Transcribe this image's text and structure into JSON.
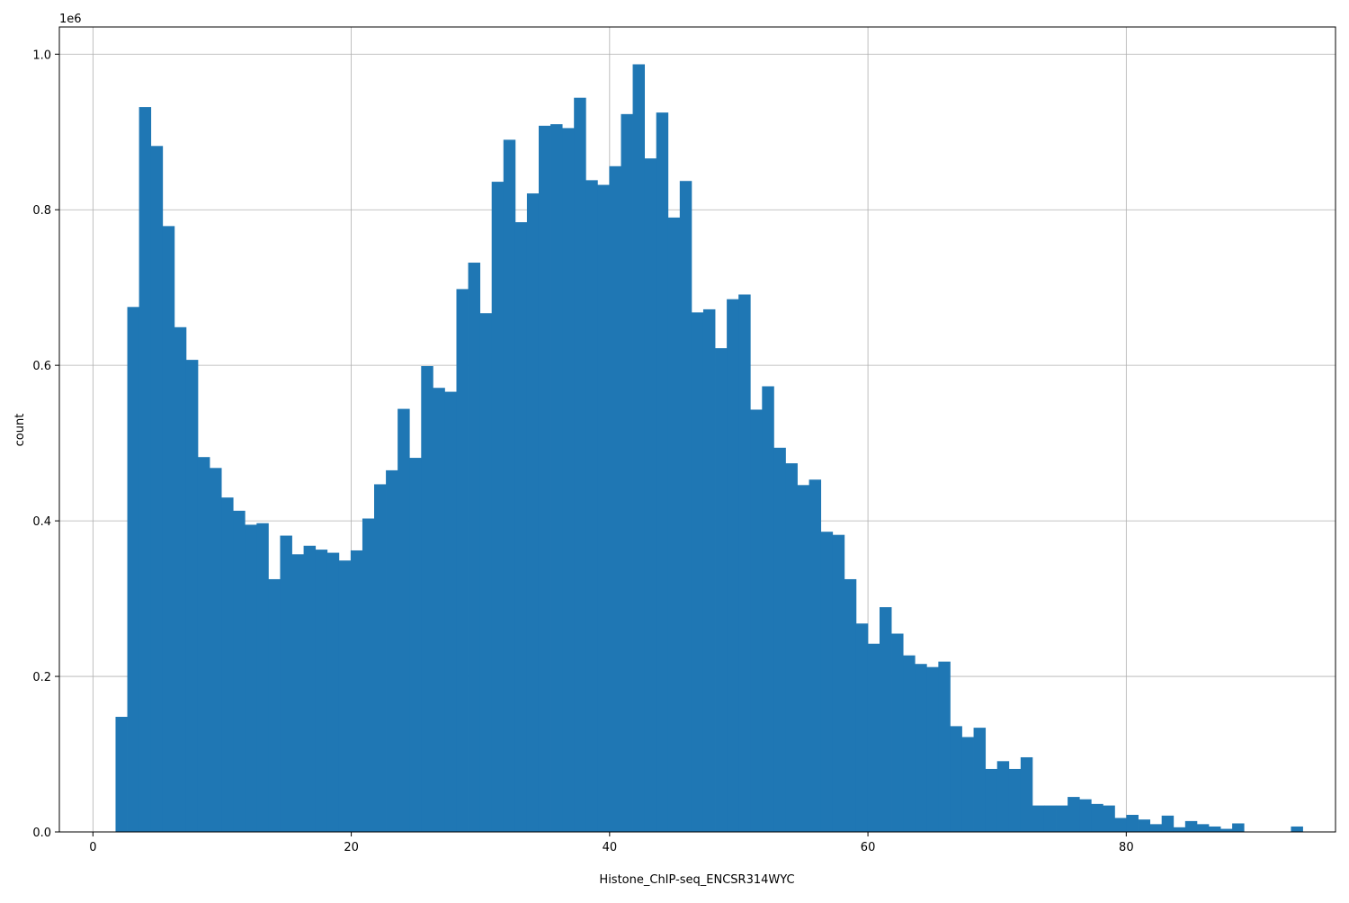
{
  "chart_data": {
    "type": "bar",
    "histogram": true,
    "xlabel": "Histone_ChIP-seq_ENCSR314WYC",
    "ylabel": "count",
    "y_offset_text": "1e6",
    "xlim": [
      -2.6,
      96.2
    ],
    "ylim": [
      0,
      1.035
    ],
    "x_ticks": [
      0,
      20,
      40,
      60,
      80
    ],
    "x_tick_labels": [
      "0",
      "20",
      "40",
      "60",
      "80"
    ],
    "y_ticks": [
      0,
      0.2,
      0.4,
      0.6,
      0.8,
      1.0
    ],
    "y_tick_labels": [
      "0.0",
      "0.2",
      "0.4",
      "0.6",
      "0.8",
      "1.0"
    ],
    "grid": true,
    "bar_color": "#1f77b4",
    "bin_start": 1.75,
    "bin_width": 0.91,
    "values": [
      0.148,
      0.675,
      0.932,
      0.882,
      0.779,
      0.649,
      0.607,
      0.482,
      0.468,
      0.43,
      0.413,
      0.395,
      0.397,
      0.325,
      0.381,
      0.357,
      0.368,
      0.363,
      0.359,
      0.349,
      0.362,
      0.403,
      0.447,
      0.465,
      0.544,
      0.481,
      0.599,
      0.571,
      0.566,
      0.698,
      0.732,
      0.667,
      0.836,
      0.89,
      0.784,
      0.821,
      0.908,
      0.91,
      0.905,
      0.944,
      0.838,
      0.832,
      0.856,
      0.923,
      0.987,
      0.866,
      0.925,
      0.79,
      0.837,
      0.668,
      0.672,
      0.622,
      0.685,
      0.691,
      0.543,
      0.573,
      0.494,
      0.474,
      0.446,
      0.453,
      0.386,
      0.382,
      0.325,
      0.268,
      0.242,
      0.289,
      0.255,
      0.227,
      0.216,
      0.212,
      0.219,
      0.136,
      0.122,
      0.134,
      0.081,
      0.091,
      0.081,
      0.096,
      0.034,
      0.034,
      0.034,
      0.045,
      0.042,
      0.036,
      0.034,
      0.018,
      0.022,
      0.016,
      0.01,
      0.021,
      0.006,
      0.014,
      0.01,
      0.007,
      0.004,
      0.011,
      0,
      0,
      0,
      0,
      0.007
    ]
  }
}
